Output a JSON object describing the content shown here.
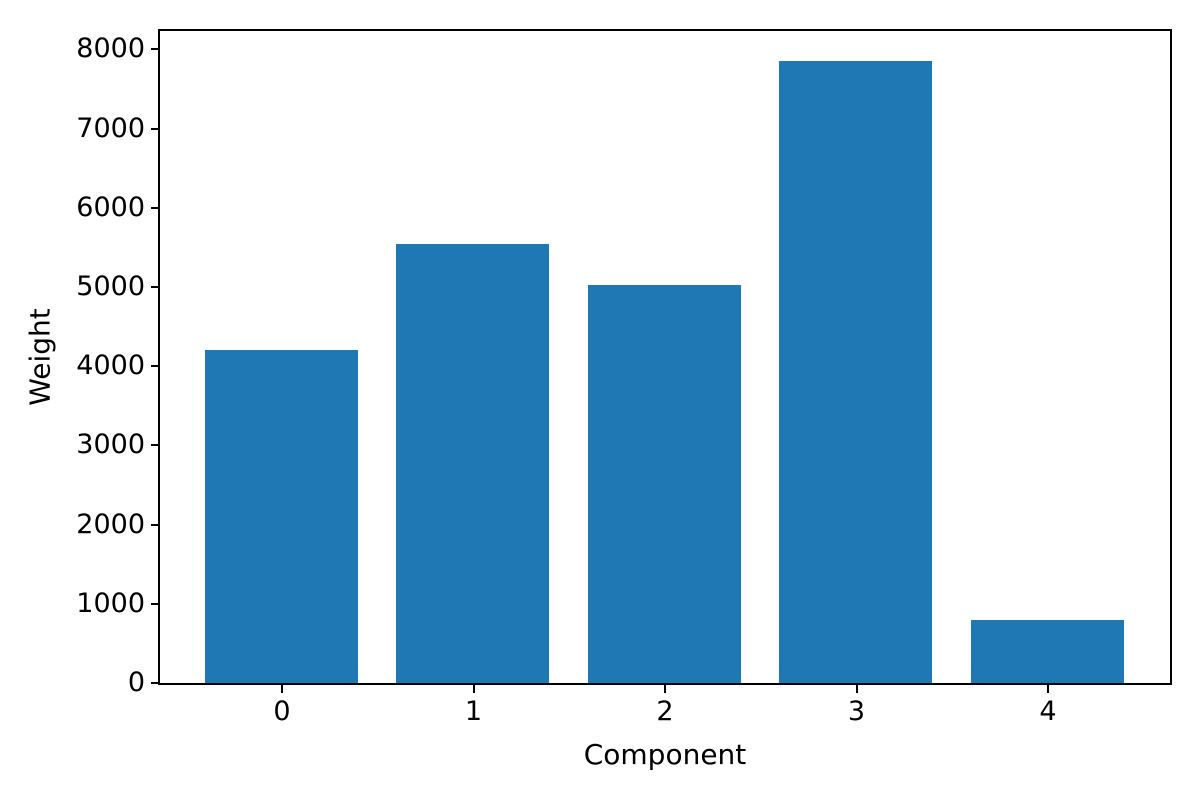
{
  "chart_data": {
    "type": "bar",
    "title": "",
    "xlabel": "Component",
    "ylabel": "Weight",
    "categories": [
      "0",
      "1",
      "2",
      "3",
      "4"
    ],
    "values": [
      4200,
      5540,
      5030,
      7850,
      800
    ],
    "series_name": "Weight",
    "yticks": [
      0,
      1000,
      2000,
      3000,
      4000,
      5000,
      6000,
      7000,
      8000
    ],
    "ylim": [
      0,
      8245
    ],
    "bar_color": "#1f77b4",
    "spine_color": "#000000",
    "text_color": "#000000",
    "background_color": "#ffffff",
    "grid": false,
    "legend": null,
    "legend_position": "none"
  }
}
